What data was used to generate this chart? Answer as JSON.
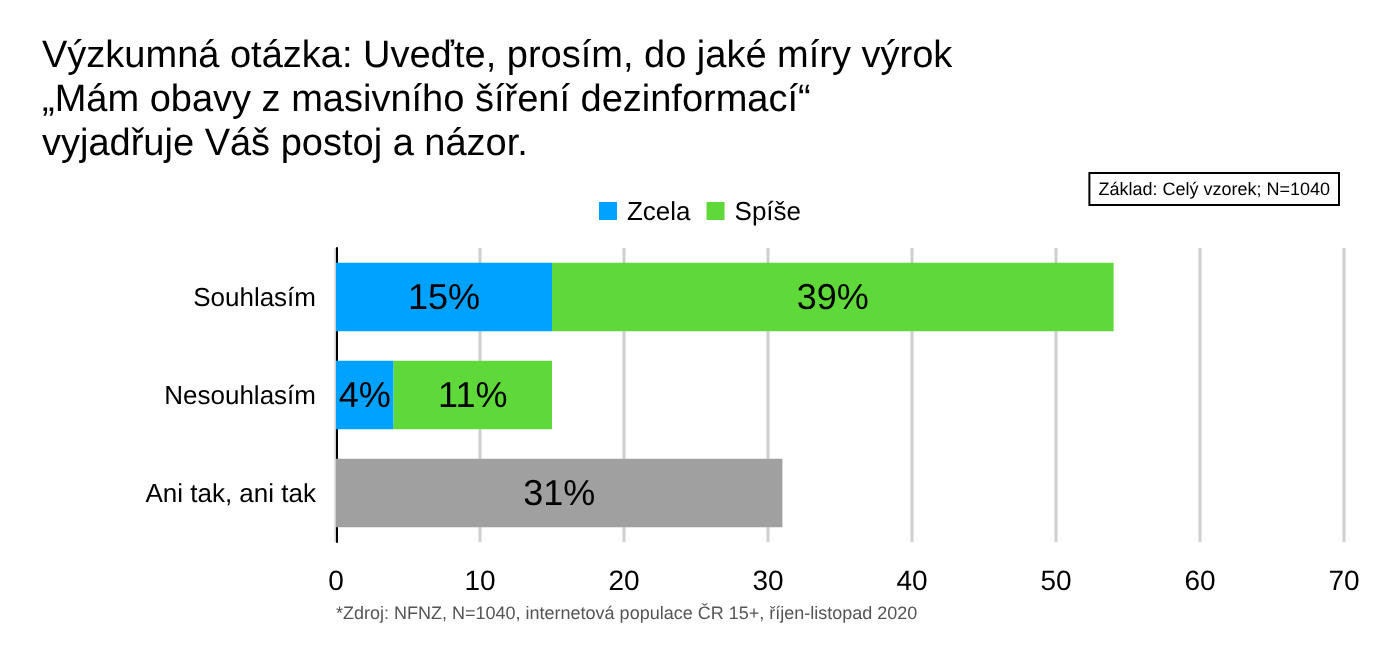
{
  "chart_data": {
    "type": "bar",
    "orientation": "horizontal",
    "stacked": true,
    "title": "Výzkumná otázka: Uveďte, prosím, do jaké míry výrok „Mám obavy z masivního šíření dezinformací“ vyjadřuje Váš postoj a názor.",
    "categories": [
      "Souhlasím",
      "Nesouhlasím",
      "Ani tak, ani tak"
    ],
    "series": [
      {
        "name": "Zcela",
        "color": "#00a2ff",
        "values": [
          15,
          4,
          null
        ],
        "value_labels": [
          "15%",
          "4%",
          null
        ]
      },
      {
        "name": "Spíše",
        "color": "#5fd93a",
        "values": [
          39,
          11,
          null
        ],
        "value_labels": [
          "39%",
          "11%",
          null
        ]
      },
      {
        "color": "#a0a0a0",
        "values": [
          null,
          null,
          31
        ],
        "value_labels": [
          null,
          null,
          "31%"
        ]
      }
    ],
    "xlim": [
      0,
      70
    ],
    "xticks": [
      0,
      10,
      20,
      30,
      40,
      50,
      60,
      70
    ],
    "grid": "x",
    "legend": "top",
    "annotations": [
      "Základ: Celý vzorek; N=1040",
      "*Zdroj: NFNZ, N=1040, internetová populace ČR 15+, říjen-listopad 2020"
    ]
  }
}
